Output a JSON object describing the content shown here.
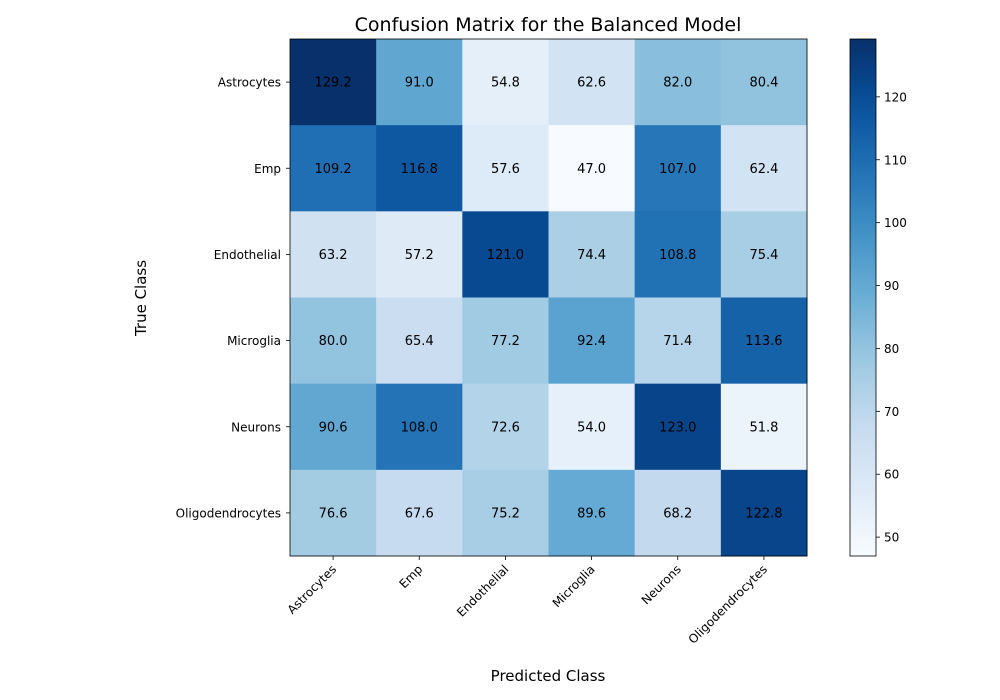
{
  "chart_data": {
    "type": "heatmap",
    "title": "Confusion Matrix for the Balanced Model",
    "xlabel": "Predicted Class",
    "ylabel": "True Class",
    "x_categories": [
      "Astrocytes",
      "Emp",
      "Endothelial",
      "Microglia",
      "Neurons",
      "Oligodendrocytes"
    ],
    "y_categories": [
      "Astrocytes",
      "Emp",
      "Endothelial",
      "Microglia",
      "Neurons",
      "Oligodendrocytes"
    ],
    "values": [
      [
        129.2,
        91.0,
        54.8,
        62.6,
        82.0,
        80.4
      ],
      [
        109.2,
        116.8,
        57.6,
        47.0,
        107.0,
        62.4
      ],
      [
        63.2,
        57.2,
        121.0,
        74.4,
        108.8,
        75.4
      ],
      [
        80.0,
        65.4,
        77.2,
        92.4,
        71.4,
        113.6
      ],
      [
        90.6,
        108.0,
        72.6,
        54.0,
        123.0,
        51.8
      ],
      [
        76.6,
        67.6,
        75.2,
        89.6,
        68.2,
        122.8
      ]
    ],
    "value_labels": [
      [
        "129.2",
        "91.0",
        "54.8",
        "62.6",
        "82.0",
        "80.4"
      ],
      [
        "109.2",
        "116.8",
        "57.6",
        "47.0",
        "107.0",
        "62.4"
      ],
      [
        "63.2",
        "57.2",
        "121.0",
        "74.4",
        "108.8",
        "75.4"
      ],
      [
        "80.0",
        "65.4",
        "77.2",
        "92.4",
        "71.4",
        "113.6"
      ],
      [
        "90.6",
        "108.0",
        "72.6",
        "54.0",
        "123.0",
        "51.8"
      ],
      [
        "76.6",
        "67.6",
        "75.2",
        "89.6",
        "68.2",
        "122.8"
      ]
    ],
    "colormap": "Blues",
    "color_range": [
      47.0,
      129.2
    ],
    "colorbar_ticks": [
      50,
      60,
      70,
      80,
      90,
      100,
      110,
      120
    ],
    "colorbar_tick_labels": [
      "50",
      "60",
      "70",
      "80",
      "90",
      "100",
      "110",
      "120"
    ],
    "grid": false
  }
}
